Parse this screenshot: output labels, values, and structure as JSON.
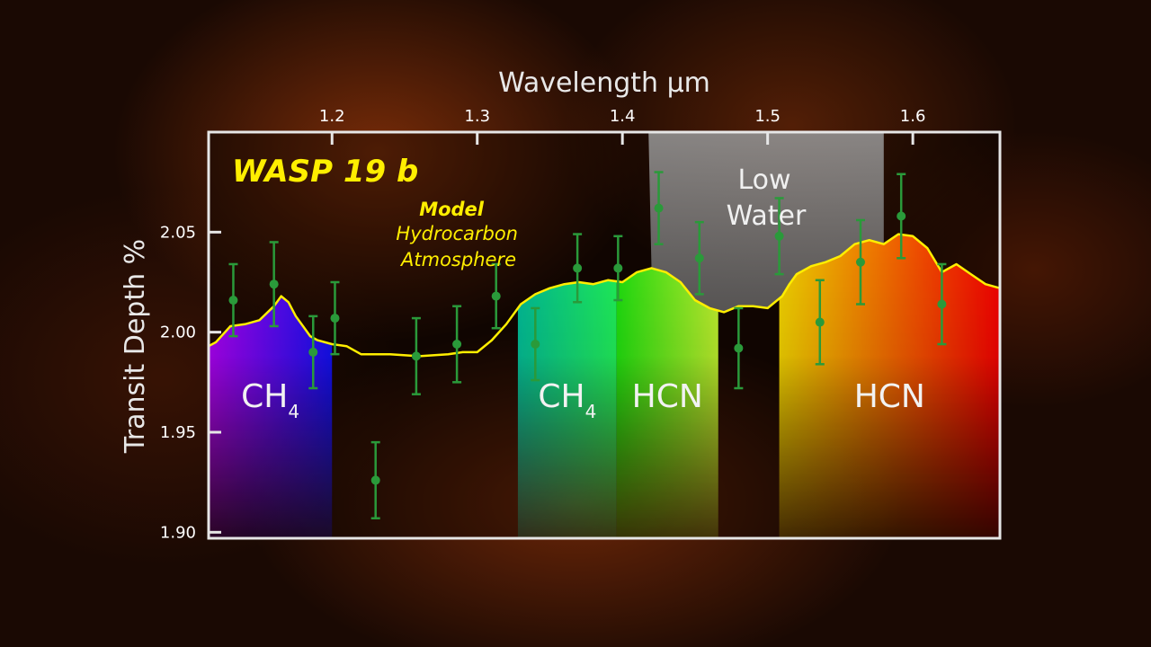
{
  "chart_data": {
    "type": "scatter",
    "title": "WASP 19 b",
    "xlabel": "Wavelength μm",
    "ylabel": "Transit Depth %",
    "xlim": [
      1.115,
      1.66
    ],
    "ylim": [
      1.897,
      2.1
    ],
    "x_ticks": [
      1.2,
      1.3,
      1.4,
      1.5,
      1.6
    ],
    "x_tick_labels": [
      "1.2",
      "1.3",
      "1.4",
      "1.5",
      "1.6"
    ],
    "y_ticks": [
      1.9,
      1.95,
      2.0,
      2.05
    ],
    "y_tick_labels": [
      "1.90",
      "1.95",
      "2.00",
      "2.05"
    ],
    "grid": false,
    "annotations": {
      "model_title": "Model",
      "model_line1": "Hydrocarbon",
      "model_line2": "Atmosphere",
      "low_water_line1": "Low",
      "low_water_line2": "Water"
    },
    "bands": [
      {
        "label": "CH",
        "sub": "4",
        "x0": 1.115,
        "x1": 1.2,
        "colors": [
          "#b000ff",
          "#1010ff"
        ]
      },
      {
        "label": "CH",
        "sub": "4",
        "x0": 1.328,
        "x1": 1.396,
        "colors": [
          "#00c8a0",
          "#20ff60"
        ]
      },
      {
        "label": "HCN",
        "sub": "",
        "x0": 1.396,
        "x1": 1.466,
        "colors": [
          "#20ee10",
          "#c8ff30"
        ]
      },
      {
        "label": "HCN",
        "sub": "",
        "x0": 1.508,
        "x1": 1.66,
        "colors": [
          "#ffe000",
          "#ff0000"
        ]
      }
    ],
    "low_water_region": [
      1.418,
      1.58
    ],
    "model_color": "#ffee00",
    "point_color": "#2a9a3a",
    "series": [
      {
        "kind": "model",
        "x": [
          1.115,
          1.12,
          1.13,
          1.14,
          1.15,
          1.16,
          1.165,
          1.17,
          1.175,
          1.18,
          1.185,
          1.19,
          1.2,
          1.21,
          1.22,
          1.24,
          1.26,
          1.28,
          1.29,
          1.3,
          1.31,
          1.32,
          1.33,
          1.34,
          1.35,
          1.36,
          1.37,
          1.38,
          1.39,
          1.4,
          1.41,
          1.42,
          1.43,
          1.44,
          1.45,
          1.46,
          1.47,
          1.48,
          1.49,
          1.5,
          1.51,
          1.515,
          1.52,
          1.53,
          1.54,
          1.55,
          1.56,
          1.57,
          1.58,
          1.59,
          1.6,
          1.61,
          1.62,
          1.63,
          1.64,
          1.65,
          1.66
        ],
        "y": [
          1.993,
          1.995,
          2.003,
          2.004,
          2.006,
          2.013,
          2.018,
          2.015,
          2.008,
          2.003,
          1.998,
          1.996,
          1.994,
          1.993,
          1.989,
          1.989,
          1.988,
          1.989,
          1.99,
          1.99,
          1.996,
          2.004,
          2.014,
          2.019,
          2.022,
          2.024,
          2.025,
          2.024,
          2.026,
          2.025,
          2.03,
          2.032,
          2.03,
          2.025,
          2.016,
          2.012,
          2.01,
          2.013,
          2.013,
          2.012,
          2.018,
          2.024,
          2.029,
          2.033,
          2.035,
          2.038,
          2.044,
          2.046,
          2.044,
          2.049,
          2.048,
          2.042,
          2.03,
          2.034,
          2.029,
          2.024,
          2.022
        ]
      },
      {
        "kind": "measured",
        "points": [
          {
            "x": 1.132,
            "y": 2.016,
            "err": 0.018
          },
          {
            "x": 1.16,
            "y": 2.024,
            "err": 0.021
          },
          {
            "x": 1.187,
            "y": 1.99,
            "err": 0.018
          },
          {
            "x": 1.202,
            "y": 2.007,
            "err": 0.018
          },
          {
            "x": 1.23,
            "y": 1.926,
            "err": 0.019
          },
          {
            "x": 1.258,
            "y": 1.988,
            "err": 0.019
          },
          {
            "x": 1.286,
            "y": 1.994,
            "err": 0.019
          },
          {
            "x": 1.313,
            "y": 2.018,
            "err": 0.016
          },
          {
            "x": 1.34,
            "y": 1.994,
            "err": 0.018
          },
          {
            "x": 1.369,
            "y": 2.032,
            "err": 0.017
          },
          {
            "x": 1.397,
            "y": 2.032,
            "err": 0.016
          },
          {
            "x": 1.425,
            "y": 2.062,
            "err": 0.018
          },
          {
            "x": 1.453,
            "y": 2.037,
            "err": 0.018
          },
          {
            "x": 1.48,
            "y": 1.992,
            "err": 0.02
          },
          {
            "x": 1.508,
            "y": 2.048,
            "err": 0.019
          },
          {
            "x": 1.536,
            "y": 2.005,
            "err": 0.021
          },
          {
            "x": 1.564,
            "y": 2.035,
            "err": 0.021
          },
          {
            "x": 1.592,
            "y": 2.058,
            "err": 0.021
          },
          {
            "x": 1.62,
            "y": 2.014,
            "err": 0.02
          }
        ]
      }
    ]
  }
}
